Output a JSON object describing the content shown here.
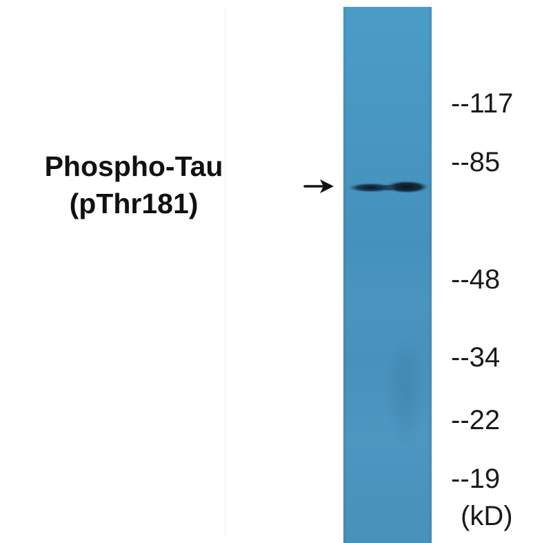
{
  "protein_label": {
    "line1": "Phospho-Tau",
    "line2": "(pThr181)"
  },
  "molecular_weight_markers": [
    {
      "label": "--117",
      "kd": 117
    },
    {
      "label": "--85",
      "kd": 85
    },
    {
      "label": "--48",
      "kd": 48
    },
    {
      "label": "--34",
      "kd": 34
    },
    {
      "label": "--22",
      "kd": 22
    },
    {
      "label": "--19",
      "kd": 19
    }
  ],
  "unit_label": "(kD)",
  "icons": {
    "band_pointer": "arrow-right-icon"
  },
  "colors": {
    "lane": "#4893bf",
    "band": "#0f1e2c",
    "text": "#111111"
  }
}
